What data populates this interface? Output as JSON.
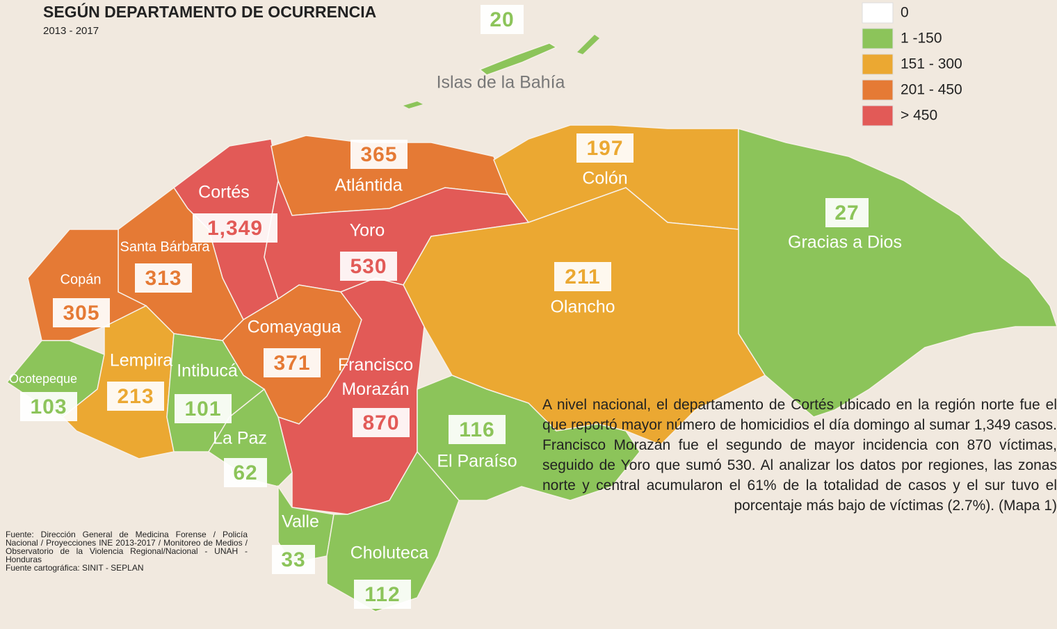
{
  "title": "SEGÚN DEPARTAMENTO DE OCURRENCIA",
  "subtitle": "2013 - 2017",
  "legend": [
    {
      "label": "0",
      "color": "#ffffff"
    },
    {
      "label": "1 -150",
      "color": "#8cc45a"
    },
    {
      "label": "151 - 300",
      "color": "#eba832"
    },
    {
      "label": "201 - 450",
      "color": "#e57a35"
    },
    {
      "label": "> 450",
      "color": "#e25a57"
    }
  ],
  "departments": [
    {
      "name": "Islas de la Bahía",
      "value": 20,
      "color": "#8cc45a"
    },
    {
      "name": "Cortés",
      "value": 1349,
      "value_label": "1,349",
      "color": "#e25a57"
    },
    {
      "name": "Atlántida",
      "value": 365,
      "color": "#e57a35"
    },
    {
      "name": "Colón",
      "value": 197,
      "color": "#eba832"
    },
    {
      "name": "Gracias a Dios",
      "value": 27,
      "color": "#8cc45a"
    },
    {
      "name": "Yoro",
      "value": 530,
      "color": "#e25a57"
    },
    {
      "name": "Santa Bárbara",
      "value": 313,
      "color": "#e57a35"
    },
    {
      "name": "Copán",
      "value": 305,
      "color": "#e57a35"
    },
    {
      "name": "Olancho",
      "value": 211,
      "color": "#eba832"
    },
    {
      "name": "Comayagua",
      "value": 371,
      "color": "#e57a35"
    },
    {
      "name": "Francisco Morazán",
      "value": 870,
      "color": "#e25a57"
    },
    {
      "name": "Ocotepeque",
      "value": 103,
      "color": "#8cc45a"
    },
    {
      "name": "Lempira",
      "value": 213,
      "color": "#eba832"
    },
    {
      "name": "Intibucá",
      "value": 101,
      "color": "#8cc45a"
    },
    {
      "name": "La Paz",
      "value": 62,
      "color": "#8cc45a"
    },
    {
      "name": "El Paraíso",
      "value": 116,
      "color": "#8cc45a"
    },
    {
      "name": "Valle",
      "value": 33,
      "color": "#8cc45a"
    },
    {
      "name": "Choluteca",
      "value": 112,
      "color": "#8cc45a"
    }
  ],
  "description": "A nivel nacional, el departamento de Cortés ubicado en la región norte fue el que reportó mayor número de homicidios el día domingo al sumar 1,349 casos. Francisco Morazán fue el segundo de mayor incidencia con 870 víctimas, seguido de Yoro que sumó 530. Al analizar los datos por regiones, las zonas norte y central acumularon el 61% de la totalidad de casos y el sur tuvo el porcentaje más bajo de víctimas (2.7%). (Mapa 1)",
  "sources": [
    "Fuente: Dirección General de Medicina Forense / Policía Nacional / Proyecciones INE 2013-2017 / Monitoreo de Medios / Observatorio de la Violencia Regional/Nacional - UNAH - Honduras",
    "Fuente cartográfica: SINIT - SEPLAN"
  ]
}
